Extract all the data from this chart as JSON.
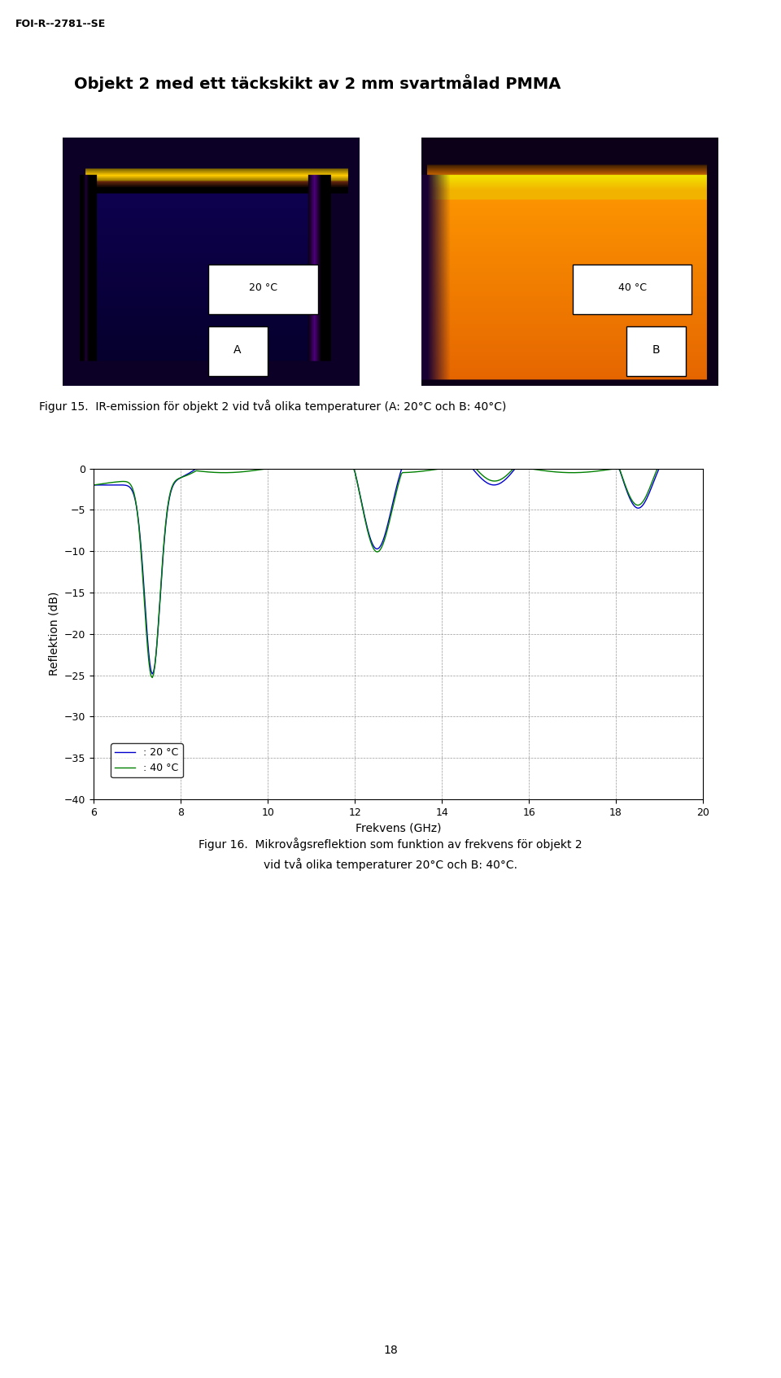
{
  "page_header": "FOI-R--2781--SE",
  "section_title": "Objekt 2 med ett täckskikt av 2 mm svartmålad PMMA",
  "fig15_caption": "Figur 15.  IR-emission för objekt 2 vid två olika temperaturer (A: 20°C och B: 40°C)",
  "fig16_caption_line1": "Figur 16.  Mikrovågsreflektion som funktion av frekvens för objekt 2",
  "fig16_caption_line2": "vid två olika temperaturer 20°C och B: 40°C.",
  "page_number": "18",
  "img_A_label": "20 °C",
  "img_B_label": "40 °C",
  "img_A_sublabel": "A",
  "img_B_sublabel": "B",
  "xlabel": "Frekvens (GHz)",
  "ylabel": "Reflektion (dB)",
  "legend_20": ": 20 °C",
  "legend_40": ": 40 °C",
  "color_20": "#0000CD",
  "color_40": "#008000",
  "xlim": [
    6,
    20
  ],
  "ylim": [
    -40,
    0
  ],
  "xticks": [
    6,
    8,
    10,
    12,
    14,
    16,
    18,
    20
  ],
  "yticks": [
    0,
    -5,
    -10,
    -15,
    -20,
    -25,
    -30,
    -35,
    -40
  ],
  "background_color": "#ffffff"
}
